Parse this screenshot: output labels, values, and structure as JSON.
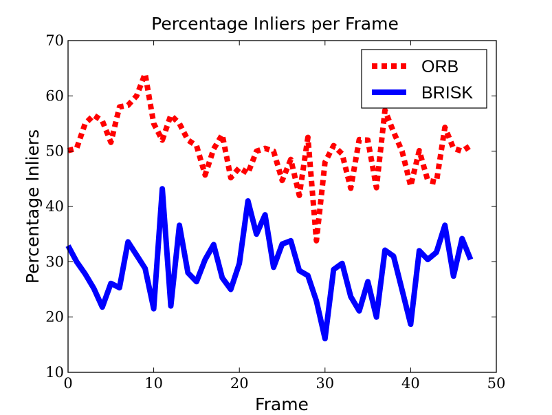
{
  "chart_data": {
    "type": "line",
    "title": "Percentage Inliers per Frame",
    "xlabel": "Frame",
    "ylabel": "Percentage Inliers",
    "xlim": [
      0,
      50
    ],
    "ylim": [
      10,
      70
    ],
    "xticks": [
      0,
      10,
      20,
      30,
      40,
      50
    ],
    "yticks": [
      10,
      20,
      30,
      40,
      50,
      60,
      70
    ],
    "grid": false,
    "legend": "top-right",
    "x": [
      0,
      1,
      2,
      3,
      4,
      5,
      6,
      7,
      8,
      9,
      10,
      11,
      12,
      13,
      14,
      15,
      16,
      17,
      18,
      19,
      20,
      21,
      22,
      23,
      24,
      25,
      26,
      27,
      28,
      29,
      30,
      31,
      32,
      33,
      34,
      35,
      36,
      37,
      38,
      39,
      40,
      41,
      42,
      43,
      44,
      45,
      46,
      47
    ],
    "series": [
      {
        "name": "ORB",
        "color": "#ff0000",
        "style": "dotted",
        "values": [
          50.1,
          50.5,
          55.0,
          56.5,
          55.5,
          51.6,
          58.0,
          58.3,
          60.0,
          64.0,
          55.0,
          52.0,
          56.5,
          55.0,
          52.0,
          51.0,
          45.7,
          50.4,
          53.0,
          45.2,
          47.0,
          46.0,
          50.0,
          50.5,
          50.0,
          44.7,
          48.5,
          42.0,
          52.5,
          33.8,
          48.0,
          51.0,
          49.5,
          43.3,
          52.1,
          52.0,
          43.4,
          57.4,
          53.5,
          50.0,
          43.7,
          50.1,
          44.7,
          44.4,
          54.3,
          50.5,
          50.0,
          51.0
        ]
      },
      {
        "name": "BRISK",
        "color": "#0000ff",
        "style": "solid",
        "values": [
          32.9,
          30.0,
          27.8,
          25.2,
          21.8,
          26.1,
          25.3,
          33.6,
          31.2,
          28.8,
          21.5,
          43.2,
          22.0,
          36.6,
          28.0,
          26.4,
          30.4,
          33.1,
          27.1,
          25.0,
          29.7,
          41.0,
          35.0,
          38.5,
          29.0,
          33.2,
          33.8,
          28.4,
          27.5,
          22.9,
          16.1,
          28.6,
          29.7,
          23.7,
          21.1,
          26.4,
          20.0,
          32.1,
          31.0,
          24.9,
          18.7,
          32.0,
          30.4,
          31.7,
          36.6,
          27.4,
          34.2,
          30.4
        ]
      }
    ]
  }
}
